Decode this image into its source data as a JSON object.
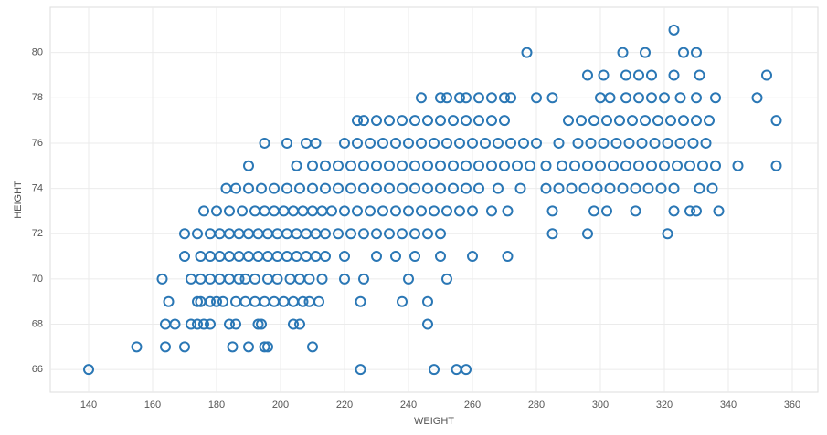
{
  "chart_data": {
    "type": "scatter",
    "x_label": "WEIGHT",
    "y_label": "HEIGHT",
    "color": "#2a77b5",
    "grid": true,
    "xlim": [
      128,
      368
    ],
    "ylim": [
      65,
      82
    ],
    "xticks": [
      140,
      160,
      180,
      200,
      220,
      240,
      260,
      280,
      300,
      320,
      340,
      360
    ],
    "yticks": [
      66,
      68,
      70,
      72,
      74,
      76,
      78,
      80
    ],
    "x": [
      140,
      225,
      248,
      255,
      258,
      155,
      164,
      170,
      185,
      190,
      195,
      196,
      210,
      164,
      167,
      172,
      174,
      176,
      178,
      184,
      186,
      193,
      194,
      204,
      206,
      246,
      165,
      174,
      175,
      178,
      180,
      182,
      186,
      189,
      192,
      195,
      198,
      201,
      204,
      207,
      209,
      212,
      225,
      238,
      246,
      163,
      172,
      175,
      178,
      181,
      184,
      187,
      189,
      192,
      196,
      199,
      203,
      206,
      209,
      213,
      220,
      226,
      240,
      252,
      170,
      175,
      178,
      181,
      184,
      187,
      190,
      193,
      196,
      199,
      202,
      205,
      208,
      211,
      214,
      220,
      230,
      236,
      242,
      250,
      260,
      271,
      170,
      174,
      178,
      181,
      184,
      187,
      190,
      193,
      196,
      199,
      202,
      205,
      208,
      211,
      214,
      218,
      222,
      226,
      230,
      234,
      238,
      242,
      246,
      250,
      285,
      296,
      321,
      176,
      180,
      184,
      188,
      192,
      195,
      198,
      201,
      204,
      207,
      210,
      213,
      216,
      220,
      224,
      228,
      232,
      236,
      240,
      244,
      248,
      252,
      256,
      260,
      266,
      271,
      285,
      298,
      302,
      311,
      323,
      328,
      330,
      337,
      183,
      186,
      190,
      194,
      198,
      202,
      206,
      210,
      214,
      218,
      222,
      226,
      230,
      234,
      238,
      242,
      246,
      250,
      254,
      258,
      262,
      268,
      275,
      283,
      287,
      291,
      295,
      299,
      303,
      307,
      311,
      315,
      319,
      323,
      331,
      335,
      190,
      205,
      210,
      214,
      218,
      222,
      226,
      230,
      234,
      238,
      242,
      246,
      250,
      254,
      258,
      262,
      266,
      270,
      274,
      278,
      283,
      288,
      292,
      296,
      300,
      304,
      308,
      312,
      316,
      320,
      324,
      328,
      332,
      336,
      343,
      355,
      195,
      202,
      208,
      211,
      220,
      224,
      228,
      232,
      236,
      240,
      244,
      248,
      252,
      256,
      260,
      264,
      268,
      272,
      276,
      280,
      287,
      293,
      297,
      301,
      305,
      309,
      313,
      317,
      321,
      325,
      329,
      333,
      224,
      226,
      230,
      234,
      238,
      242,
      246,
      250,
      254,
      258,
      262,
      266,
      270,
      290,
      294,
      298,
      302,
      306,
      310,
      314,
      318,
      322,
      326,
      330,
      334,
      355,
      244,
      250,
      252,
      256,
      258,
      262,
      266,
      270,
      272,
      280,
      285,
      300,
      303,
      308,
      312,
      316,
      320,
      325,
      330,
      336,
      349,
      296,
      301,
      308,
      312,
      316,
      323,
      331,
      352,
      277,
      307,
      314,
      326,
      330,
      323
    ],
    "y": [
      66,
      66,
      66,
      66,
      66,
      67,
      67,
      67,
      67,
      67,
      67,
      67,
      67,
      68,
      68,
      68,
      68,
      68,
      68,
      68,
      68,
      68,
      68,
      68,
      68,
      68,
      69,
      69,
      69,
      69,
      69,
      69,
      69,
      69,
      69,
      69,
      69,
      69,
      69,
      69,
      69,
      69,
      69,
      69,
      69,
      70,
      70,
      70,
      70,
      70,
      70,
      70,
      70,
      70,
      70,
      70,
      70,
      70,
      70,
      70,
      70,
      70,
      70,
      70,
      71,
      71,
      71,
      71,
      71,
      71,
      71,
      71,
      71,
      71,
      71,
      71,
      71,
      71,
      71,
      71,
      71,
      71,
      71,
      71,
      71,
      71,
      72,
      72,
      72,
      72,
      72,
      72,
      72,
      72,
      72,
      72,
      72,
      72,
      72,
      72,
      72,
      72,
      72,
      72,
      72,
      72,
      72,
      72,
      72,
      72,
      72,
      72,
      72,
      73,
      73,
      73,
      73,
      73,
      73,
      73,
      73,
      73,
      73,
      73,
      73,
      73,
      73,
      73,
      73,
      73,
      73,
      73,
      73,
      73,
      73,
      73,
      73,
      73,
      73,
      73,
      73,
      73,
      73,
      73,
      73,
      73,
      73,
      74,
      74,
      74,
      74,
      74,
      74,
      74,
      74,
      74,
      74,
      74,
      74,
      74,
      74,
      74,
      74,
      74,
      74,
      74,
      74,
      74,
      74,
      74,
      74,
      74,
      74,
      74,
      74,
      74,
      74,
      74,
      74,
      74,
      74,
      74,
      74,
      75,
      75,
      75,
      75,
      75,
      75,
      75,
      75,
      75,
      75,
      75,
      75,
      75,
      75,
      75,
      75,
      75,
      75,
      75,
      75,
      75,
      75,
      75,
      75,
      75,
      75,
      75,
      75,
      75,
      75,
      75,
      75,
      75,
      75,
      75,
      75,
      76,
      76,
      76,
      76,
      76,
      76,
      76,
      76,
      76,
      76,
      76,
      76,
      76,
      76,
      76,
      76,
      76,
      76,
      76,
      76,
      76,
      76,
      76,
      76,
      76,
      76,
      76,
      76,
      76,
      76,
      76,
      76,
      77,
      77,
      77,
      77,
      77,
      77,
      77,
      77,
      77,
      77,
      77,
      77,
      77,
      77,
      77,
      77,
      77,
      77,
      77,
      77,
      77,
      77,
      77,
      77,
      77,
      77,
      78,
      78,
      78,
      78,
      78,
      78,
      78,
      78,
      78,
      78,
      78,
      78,
      78,
      78,
      78,
      78,
      78,
      78,
      78,
      78,
      78,
      79,
      79,
      79,
      79,
      79,
      79,
      79,
      79,
      80,
      80,
      80,
      80,
      80,
      81
    ]
  }
}
